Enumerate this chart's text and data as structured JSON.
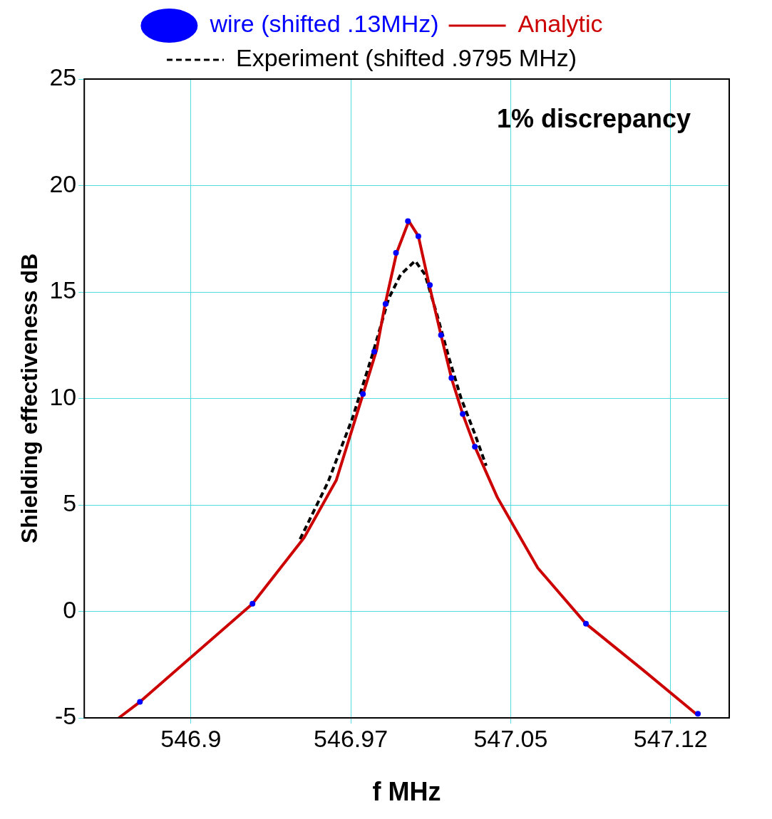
{
  "chart_data": {
    "type": "line",
    "xlabel": "f MHz",
    "ylabel": "Shielding effectiveness dB",
    "annotations": [
      "1% discrepancy"
    ],
    "xlim": [
      546.8475,
      547.15
    ],
    "xticks": [
      {
        "value": 546.8975,
        "label": "546.9"
      },
      {
        "value": 546.9725,
        "label": "546.97"
      },
      {
        "value": 547.0475,
        "label": "547.05"
      },
      {
        "value": 547.1225,
        "label": "547.12"
      }
    ],
    "ylim": [
      -5,
      25
    ],
    "yticks": [
      -5,
      0,
      5,
      10,
      15,
      20,
      25
    ],
    "grid": true,
    "legend": "top",
    "series": [
      {
        "name": "wire (shifted .13MHz)",
        "type": "scatter",
        "marker": "circle",
        "color": "#0000ff",
        "x": [
          546.8736,
          546.9264,
          546.9782,
          546.9835,
          546.9888,
          546.9937,
          546.9993,
          547.0042,
          547.0096,
          547.0148,
          547.0197,
          547.025,
          547.0307,
          547.0828,
          547.1353
        ],
        "values": [
          -4.25,
          0.36,
          10.21,
          12.2,
          14.44,
          16.84,
          18.33,
          17.62,
          15.33,
          12.98,
          10.96,
          9.27,
          7.73,
          -0.58,
          -4.81
        ]
      },
      {
        "name": "Analytic",
        "type": "line",
        "line_style": "solid",
        "color": "#cc0000",
        "x": [
          546.8637,
          546.8736,
          546.9264,
          546.9506,
          546.9657,
          546.9771,
          546.9846,
          546.9884,
          546.994,
          546.9997,
          547.0042,
          547.0092,
          547.0148,
          547.0197,
          547.025,
          547.0307,
          547.0413,
          547.0602,
          547.0828,
          547.1092,
          547.1349
        ],
        "values": [
          -5,
          -4.25,
          0.36,
          3.46,
          6.16,
          9.83,
          12.27,
          14.33,
          16.84,
          18.33,
          17.62,
          15.37,
          12.98,
          10.96,
          9.27,
          7.73,
          5.34,
          2.04,
          -0.58,
          -2.72,
          -4.85
        ]
      },
      {
        "name": "Experiment (shifted .9795 MHz)",
        "type": "line",
        "line_style": "dashed",
        "color": "#000000",
        "x": [
          546.9487,
          546.9619,
          546.9733,
          546.9827,
          546.9903,
          546.9959,
          547.0027,
          547.0073,
          547.0129,
          547.0186,
          547.0242,
          547.0307,
          547.036
        ],
        "values": [
          3.39,
          6.09,
          9.08,
          12.08,
          14.7,
          15.82,
          16.46,
          15.82,
          13.95,
          11.89,
          10.02,
          8.33,
          6.84
        ]
      }
    ]
  }
}
